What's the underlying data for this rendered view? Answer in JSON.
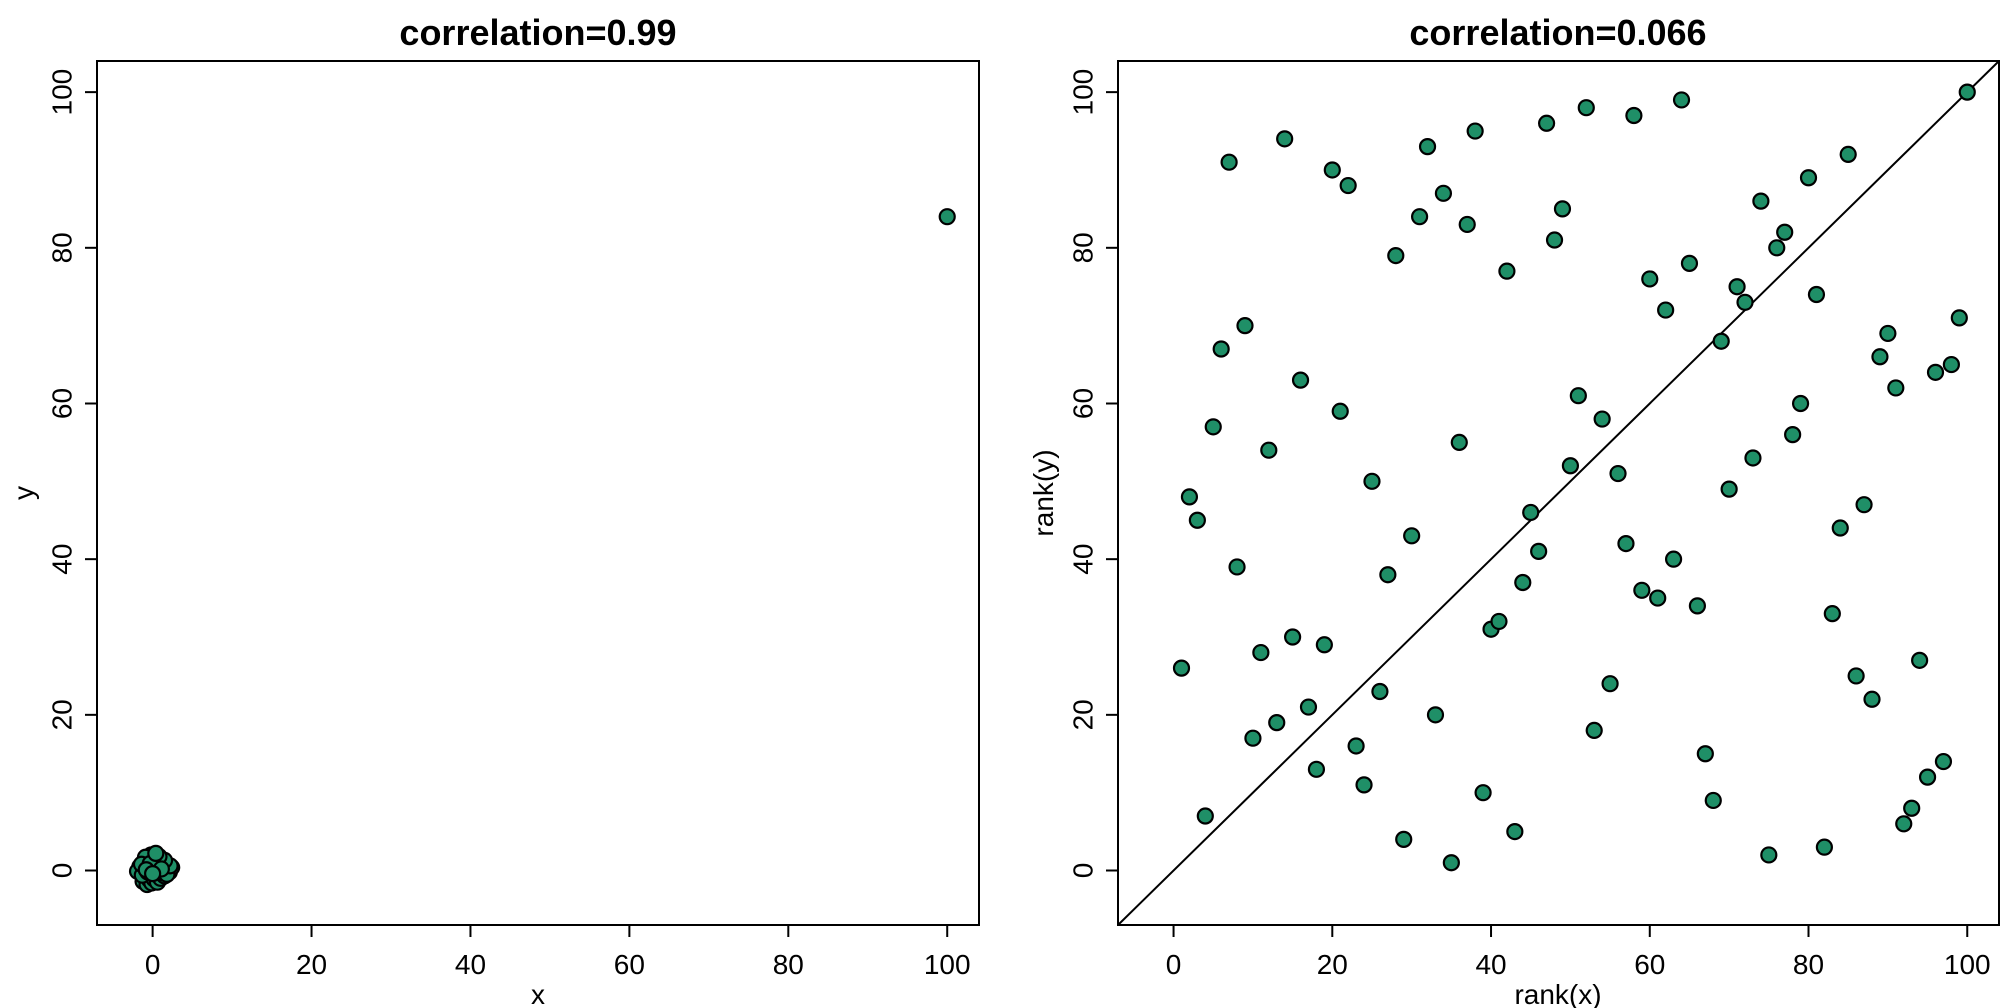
{
  "colors": {
    "point_fill": "#1f8f67",
    "point_stroke": "#000000",
    "axis": "#000000",
    "background": "#ffffff"
  },
  "chart_data": [
    {
      "type": "scatter",
      "title": "correlation=0.99",
      "xlabel": "x",
      "ylabel": "y",
      "xlim": [
        -7,
        104
      ],
      "ylim": [
        -7,
        104
      ],
      "xticks": [
        0,
        20,
        40,
        60,
        80,
        100
      ],
      "yticks": [
        0,
        20,
        40,
        60,
        80,
        100
      ],
      "grid": false,
      "reference_line": null,
      "x": [
        100,
        -1.2,
        -0.7,
        -0.4,
        -0.1,
        0.2,
        0.6,
        1.0,
        1.5,
        2.1,
        2.4,
        1.7,
        1.0,
        0.3,
        -0.5,
        -1.1,
        -1.6,
        -1.9,
        -1.3,
        -0.6,
        0.1,
        0.7,
        1.2,
        1.8,
        2.2,
        1.5,
        0.8,
        -0.2,
        -0.9,
        -1.4,
        -0.3,
        0.4,
        1.1,
        -0.8,
        0.0
      ],
      "y": [
        84,
        -1.4,
        -1.8,
        -1.2,
        -1.6,
        -1.1,
        -1.5,
        -1.0,
        -0.7,
        -0.2,
        0.4,
        0.7,
        1.1,
        1.5,
        1.4,
        1.0,
        0.5,
        -0.1,
        -0.6,
        -0.2,
        0.3,
        0.1,
        -0.3,
        -0.5,
        0.6,
        1.3,
        1.8,
        2.0,
        1.7,
        0.8,
        0.9,
        2.2,
        0.2,
        0.1,
        -0.4
      ]
    },
    {
      "type": "scatter",
      "title": "correlation=0.066",
      "xlabel": "rank(x)",
      "ylabel": "rank(y)",
      "xlim": [
        -7,
        104
      ],
      "ylim": [
        -7,
        104
      ],
      "xticks": [
        0,
        20,
        40,
        60,
        80,
        100
      ],
      "yticks": [
        0,
        20,
        40,
        60,
        80,
        100
      ],
      "grid": false,
      "reference_line": "y = x",
      "x": [
        1,
        2,
        3,
        4,
        5,
        6,
        7,
        8,
        9,
        10,
        11,
        12,
        13,
        14,
        15,
        16,
        17,
        18,
        19,
        20,
        21,
        22,
        23,
        24,
        25,
        26,
        27,
        28,
        29,
        30,
        31,
        32,
        33,
        34,
        35,
        36,
        37,
        38,
        39,
        40,
        41,
        42,
        43,
        44,
        45,
        46,
        47,
        48,
        49,
        50,
        51,
        52,
        53,
        54,
        55,
        56,
        57,
        58,
        59,
        60,
        61,
        62,
        63,
        64,
        65,
        66,
        67,
        68,
        69,
        70,
        71,
        72,
        73,
        74,
        75,
        76,
        77,
        78,
        79,
        80,
        81,
        82,
        83,
        84,
        85,
        86,
        87,
        88,
        89,
        90,
        91,
        92,
        93,
        94,
        95,
        96,
        97,
        98,
        99,
        100
      ],
      "y": [
        26,
        48,
        45,
        7,
        57,
        67,
        91,
        39,
        70,
        17,
        28,
        54,
        19,
        94,
        30,
        63,
        21,
        13,
        29,
        90,
        59,
        88,
        16,
        11,
        50,
        23,
        38,
        79,
        4,
        43,
        84,
        93,
        20,
        87,
        1,
        55,
        83,
        95,
        10,
        31,
        32,
        77,
        5,
        37,
        46,
        41,
        96,
        81,
        85,
        52,
        61,
        98,
        18,
        58,
        24,
        51,
        42,
        97,
        36,
        76,
        35,
        72,
        40,
        99,
        78,
        34,
        15,
        9,
        68,
        49,
        75,
        73,
        53,
        86,
        2,
        80,
        82,
        56,
        60,
        89,
        74,
        3,
        33,
        44,
        92,
        25,
        47,
        22,
        66,
        69,
        62,
        6,
        8,
        27,
        12,
        64,
        14,
        65,
        71,
        100
      ]
    }
  ]
}
